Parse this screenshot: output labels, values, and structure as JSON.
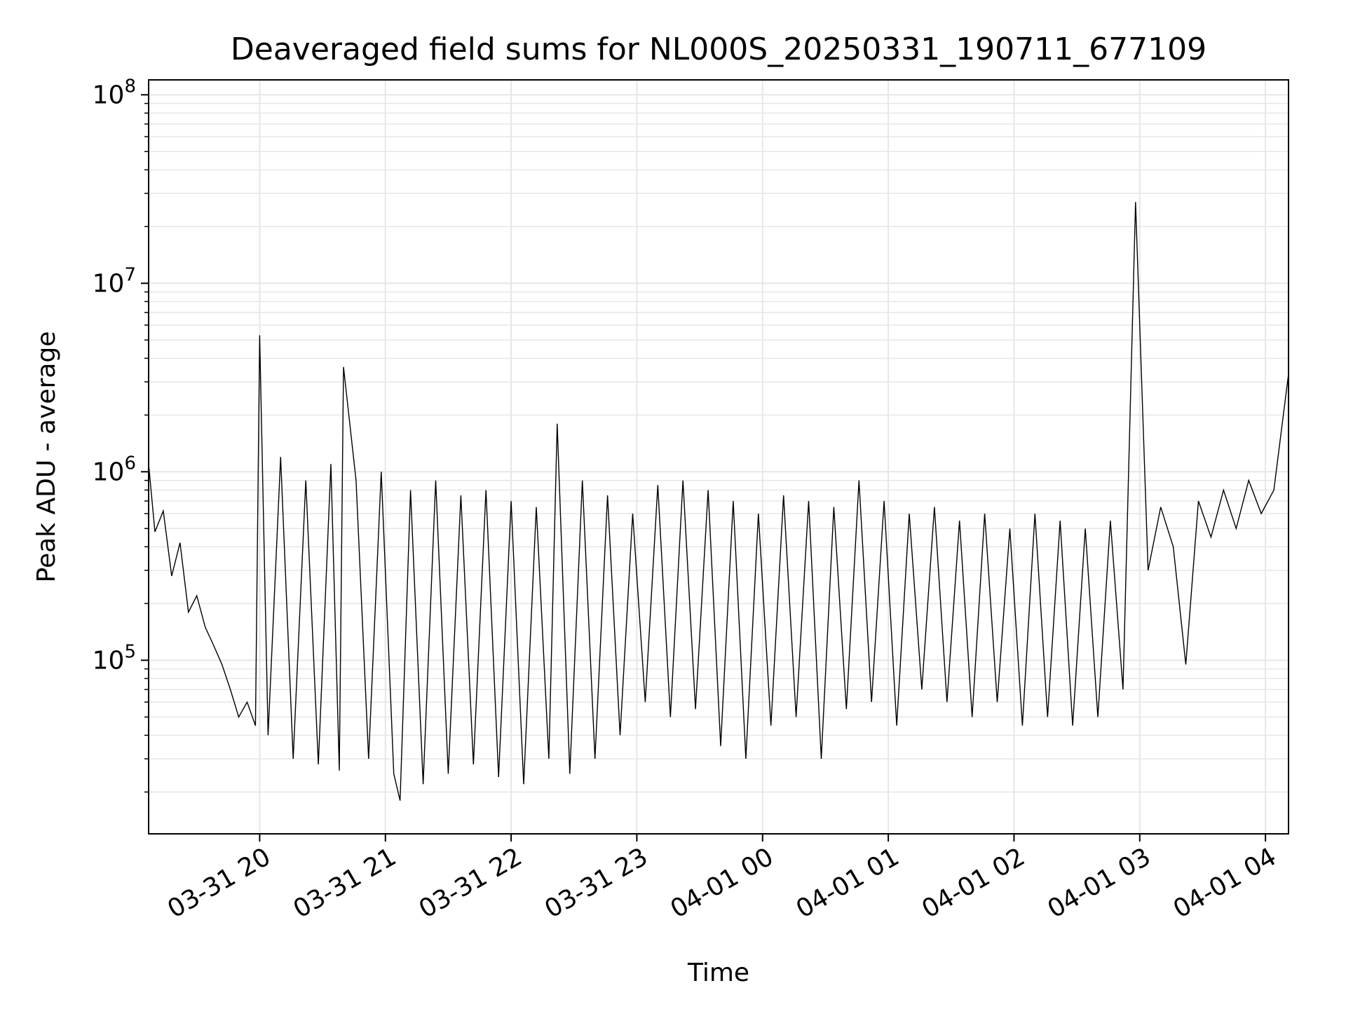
{
  "chart_data": {
    "type": "line",
    "title": "Deaveraged field sums for NL000S_20250331_190711_677109",
    "xlabel": "Time",
    "ylabel": "Peak ADU - average",
    "yscale": "log",
    "ylim": [
      12000,
      120000000
    ],
    "xlim": [
      "2025-03-31 19:07",
      "2025-04-01 04:11"
    ],
    "grid": true,
    "line_color": "#000000",
    "grid_color": "#e6e6e6",
    "x_ticks": [
      {
        "value": "2025-03-31 20:00",
        "label": "03-31 20"
      },
      {
        "value": "2025-03-31 21:00",
        "label": "03-31 21"
      },
      {
        "value": "2025-03-31 22:00",
        "label": "03-31 22"
      },
      {
        "value": "2025-03-31 23:00",
        "label": "03-31 23"
      },
      {
        "value": "2025-04-01 00:00",
        "label": "04-01 00"
      },
      {
        "value": "2025-04-01 01:00",
        "label": "04-01 01"
      },
      {
        "value": "2025-04-01 02:00",
        "label": "04-01 02"
      },
      {
        "value": "2025-04-01 03:00",
        "label": "04-01 03"
      },
      {
        "value": "2025-04-01 04:00",
        "label": "04-01 04"
      }
    ],
    "y_ticks": [
      {
        "value": 100000,
        "base": "10",
        "exp": "5"
      },
      {
        "value": 1000000,
        "base": "10",
        "exp": "6"
      },
      {
        "value": 10000000,
        "base": "10",
        "exp": "7"
      },
      {
        "value": 100000000,
        "base": "10",
        "exp": "8"
      }
    ],
    "series": [
      {
        "x": [
          "2025-03-31 19:07",
          "2025-03-31 19:10",
          "2025-03-31 19:14",
          "2025-03-31 19:18",
          "2025-03-31 19:22",
          "2025-03-31 19:26",
          "2025-03-31 19:30",
          "2025-03-31 19:34",
          "2025-03-31 19:38",
          "2025-03-31 19:42",
          "2025-03-31 19:46",
          "2025-03-31 19:50",
          "2025-03-31 19:54",
          "2025-03-31 19:58",
          "2025-03-31 20:00",
          "2025-03-31 20:04",
          "2025-03-31 20:10",
          "2025-03-31 20:16",
          "2025-03-31 20:22",
          "2025-03-31 20:28",
          "2025-03-31 20:34",
          "2025-03-31 20:38",
          "2025-03-31 20:40",
          "2025-03-31 20:46",
          "2025-03-31 20:52",
          "2025-03-31 20:58",
          "2025-03-31 21:04",
          "2025-03-31 21:07",
          "2025-03-31 21:12",
          "2025-03-31 21:18",
          "2025-03-31 21:24",
          "2025-03-31 21:30",
          "2025-03-31 21:36",
          "2025-03-31 21:42",
          "2025-03-31 21:48",
          "2025-03-31 21:54",
          "2025-03-31 22:00",
          "2025-03-31 22:06",
          "2025-03-31 22:12",
          "2025-03-31 22:18",
          "2025-03-31 22:22",
          "2025-03-31 22:28",
          "2025-03-31 22:34",
          "2025-03-31 22:40",
          "2025-03-31 22:46",
          "2025-03-31 22:52",
          "2025-03-31 22:58",
          "2025-03-31 23:04",
          "2025-03-31 23:10",
          "2025-03-31 23:16",
          "2025-03-31 23:22",
          "2025-03-31 23:28",
          "2025-03-31 23:34",
          "2025-03-31 23:40",
          "2025-03-31 23:46",
          "2025-03-31 23:52",
          "2025-03-31 23:58",
          "2025-04-01 00:04",
          "2025-04-01 00:10",
          "2025-04-01 00:16",
          "2025-04-01 00:22",
          "2025-04-01 00:28",
          "2025-04-01 00:34",
          "2025-04-01 00:40",
          "2025-04-01 00:46",
          "2025-04-01 00:52",
          "2025-04-01 00:58",
          "2025-04-01 01:04",
          "2025-04-01 01:10",
          "2025-04-01 01:16",
          "2025-04-01 01:22",
          "2025-04-01 01:28",
          "2025-04-01 01:34",
          "2025-04-01 01:40",
          "2025-04-01 01:46",
          "2025-04-01 01:52",
          "2025-04-01 01:58",
          "2025-04-01 02:04",
          "2025-04-01 02:10",
          "2025-04-01 02:16",
          "2025-04-01 02:22",
          "2025-04-01 02:28",
          "2025-04-01 02:34",
          "2025-04-01 02:40",
          "2025-04-01 02:46",
          "2025-04-01 02:52",
          "2025-04-01 02:58",
          "2025-04-01 03:04",
          "2025-04-01 03:10",
          "2025-04-01 03:16",
          "2025-04-01 03:22",
          "2025-04-01 03:28",
          "2025-04-01 03:34",
          "2025-04-01 03:40",
          "2025-04-01 03:46",
          "2025-04-01 03:52",
          "2025-04-01 03:58",
          "2025-04-01 04:04",
          "2025-04-01 04:11"
        ],
        "y": [
          1100000,
          480000,
          620000,
          280000,
          420000,
          180000,
          220000,
          150000,
          120000,
          95000,
          70000,
          50000,
          60000,
          45000,
          5300000,
          40000,
          1200000,
          30000,
          900000,
          28000,
          1100000,
          26000,
          3600000,
          900000,
          30000,
          1000000,
          25000,
          18000,
          800000,
          22000,
          900000,
          25000,
          750000,
          28000,
          800000,
          24000,
          700000,
          22000,
          650000,
          30000,
          1800000,
          25000,
          900000,
          30000,
          750000,
          40000,
          600000,
          60000,
          850000,
          50000,
          900000,
          55000,
          800000,
          35000,
          700000,
          30000,
          600000,
          45000,
          750000,
          50000,
          700000,
          30000,
          650000,
          55000,
          900000,
          60000,
          700000,
          45000,
          600000,
          70000,
          650000,
          60000,
          550000,
          50000,
          600000,
          60000,
          500000,
          45000,
          600000,
          50000,
          550000,
          45000,
          500000,
          50000,
          550000,
          70000,
          27000000,
          300000,
          650000,
          400000,
          95000,
          700000,
          450000,
          800000,
          500000,
          900000,
          600000,
          800000,
          3300000
        ]
      }
    ]
  }
}
